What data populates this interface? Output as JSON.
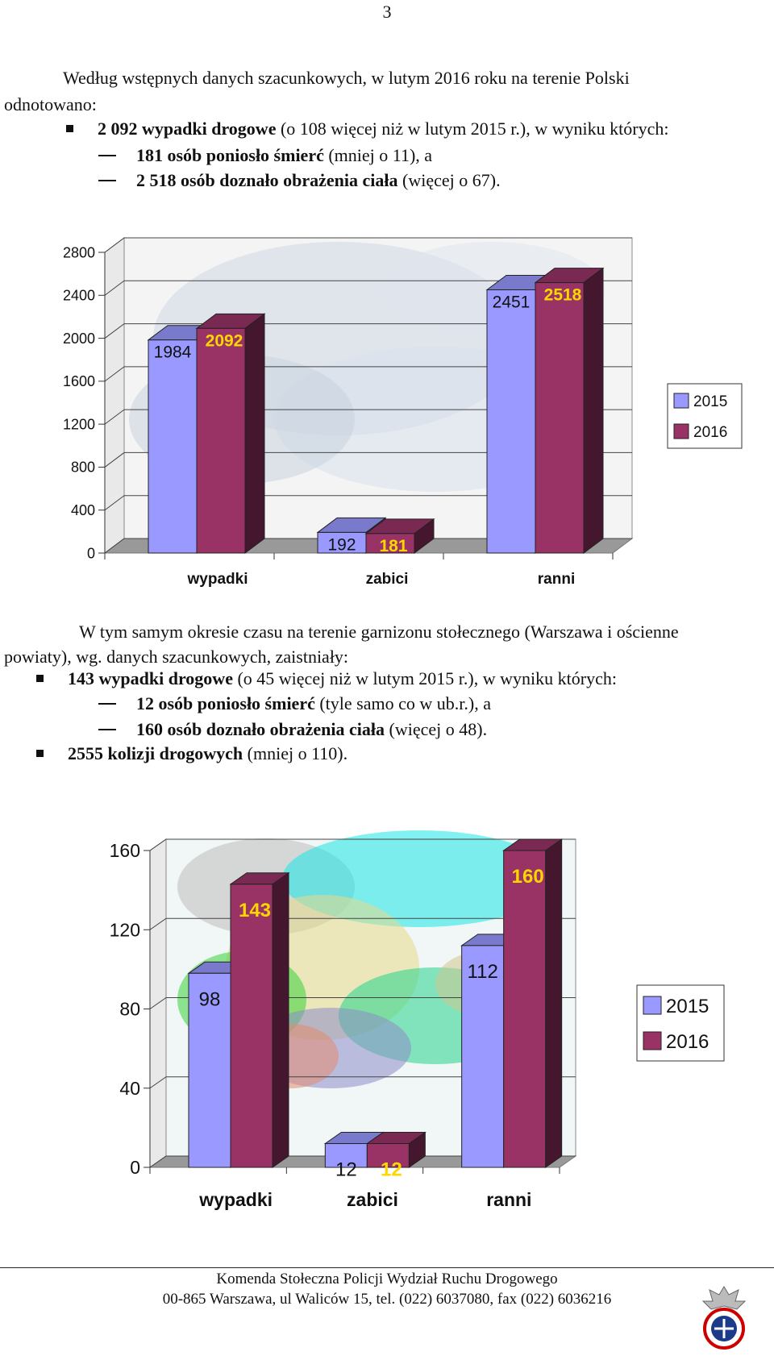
{
  "page_number": "3",
  "intro": {
    "line1": "Według wstępnych danych szacunkowych, w lutym 2016 roku na terenie Polski",
    "line2": "odnotowano:",
    "bullet_bold": "2 092 wypadki drogowe",
    "bullet_rest": " (o 108 więcej niż w lutym 2015 r.), w wyniku których:",
    "dash1_bold": "181 osób poniosło śmierć",
    "dash1_rest": " (mniej o 11), a",
    "dash2_bold": "2 518 osób doznało obrażenia ciała",
    "dash2_rest": " (więcej o 67)."
  },
  "section2": {
    "line1": "W tym samym okresie czasu na terenie garnizonu stołecznego (Warszawa i ościenne",
    "line2": "powiaty), wg. danych szacunkowych, zaistniały:",
    "bullet1_bold": "143 wypadki drogowe",
    "bullet1_rest": " (o 45 więcej niż w lutym 2015 r.), w wyniku których:",
    "dash1_bold": "12 osób poniosło śmierć",
    "dash1_rest": " (tyle samo co w ub.r.), a",
    "dash2_bold": "160 osób doznało obrażenia ciała",
    "dash2_rest": " (więcej o 48).",
    "bullet2_bold": "2555 kolizji drogowych",
    "bullet2_rest": " (mniej o 110)."
  },
  "colors": {
    "s2015": "#9999FF",
    "s2016": "#993366"
  },
  "chart_data": [
    {
      "type": "bar",
      "categories": [
        "wypadki",
        "zabici",
        "ranni"
      ],
      "series": [
        {
          "name": "2015",
          "values": [
            1984,
            192,
            2451
          ]
        },
        {
          "name": "2016",
          "values": [
            2092,
            181,
            2518
          ]
        }
      ],
      "ylim": [
        0,
        2800
      ],
      "yticks": [
        "0",
        "400",
        "800",
        "1200",
        "1600",
        "2000",
        "2400",
        "2800"
      ],
      "legend": "right",
      "grid": true
    },
    {
      "type": "bar",
      "categories": [
        "wypadki",
        "zabici",
        "ranni"
      ],
      "series": [
        {
          "name": "2015",
          "values": [
            98,
            12,
            112
          ]
        },
        {
          "name": "2016",
          "values": [
            143,
            12,
            160
          ]
        }
      ],
      "ylim": [
        0,
        160
      ],
      "yticks": [
        "0",
        "40",
        "80",
        "120",
        "160"
      ],
      "legend": "right",
      "grid": true
    }
  ],
  "footer": {
    "line1": "Komenda Stołeczna Policji Wydział Ruchu Drogowego",
    "line2": "00-865 Warszawa, ul Waliców 15, tel. (022) 6037080, fax (022) 6036216"
  }
}
